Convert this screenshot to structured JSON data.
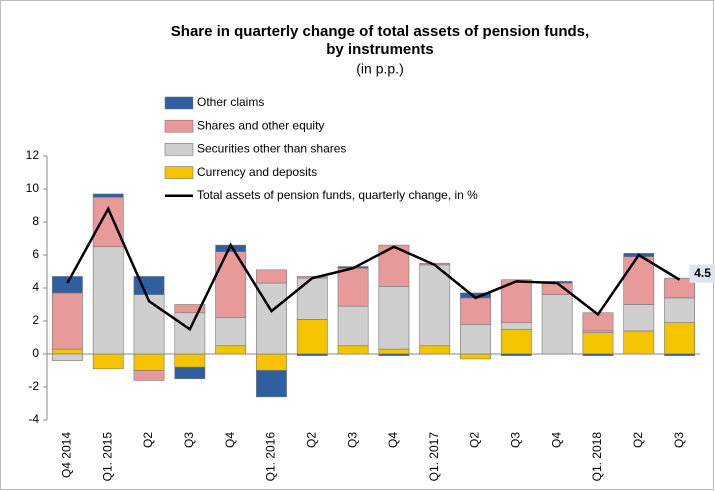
{
  "chart_data": {
    "type": "bar",
    "title": [
      "Share in quarterly change of total assets of pension funds,",
      "by instruments"
    ],
    "subtitle": "(in p.p.)",
    "categories": [
      "Q4 2014",
      "Q1. 2015",
      "Q2",
      "Q3",
      "Q4",
      "Q1. 2016",
      "Q2",
      "Q3",
      "Q4",
      "Q1. 2017",
      "Q2",
      "Q3",
      "Q4",
      "Q1. 2018",
      "Q2",
      "Q3"
    ],
    "series": [
      {
        "name": "Other claims",
        "color": "#2f5f9e",
        "type": "bar",
        "values": [
          1.0,
          0.2,
          1.1,
          -0.7,
          0.4,
          -1.6,
          -0.1,
          0.1,
          -0.1,
          0.0,
          0.3,
          -0.1,
          0.1,
          -0.1,
          0.2,
          -0.1
        ]
      },
      {
        "name": "Shares and other equity",
        "color": "#e89a9a",
        "type": "bar",
        "values": [
          3.4,
          3.0,
          -0.6,
          0.5,
          4.0,
          0.8,
          0.1,
          2.3,
          2.5,
          0.1,
          1.6,
          2.6,
          0.7,
          1.1,
          2.9,
          1.2
        ]
      },
      {
        "name": "Securities other than shares",
        "color": "#cfcfcf",
        "type": "bar",
        "values": [
          -0.4,
          6.5,
          3.6,
          2.5,
          1.7,
          4.3,
          2.5,
          2.4,
          3.8,
          4.9,
          1.8,
          0.4,
          3.6,
          0.1,
          1.6,
          1.5
        ]
      },
      {
        "name": "Currency and deposits",
        "color": "#f5c400",
        "type": "bar",
        "values": [
          0.3,
          -0.9,
          -1.0,
          -0.8,
          0.5,
          -1.0,
          2.1,
          0.5,
          0.3,
          0.5,
          -0.3,
          1.5,
          0.0,
          1.3,
          1.4,
          1.9
        ]
      },
      {
        "name": "Total assets of pension funds, quarterly change, in %",
        "color": "#000000",
        "type": "line",
        "values": [
          4.3,
          8.8,
          3.2,
          1.5,
          6.6,
          2.6,
          4.6,
          5.2,
          6.5,
          5.4,
          3.4,
          4.4,
          4.3,
          2.4,
          6.0,
          4.5
        ]
      }
    ],
    "ylim": [
      -4,
      12
    ],
    "yticks": [
      -4,
      -2,
      0,
      2,
      4,
      6,
      8,
      10,
      12
    ],
    "grid": false,
    "legend": "top-left"
  }
}
